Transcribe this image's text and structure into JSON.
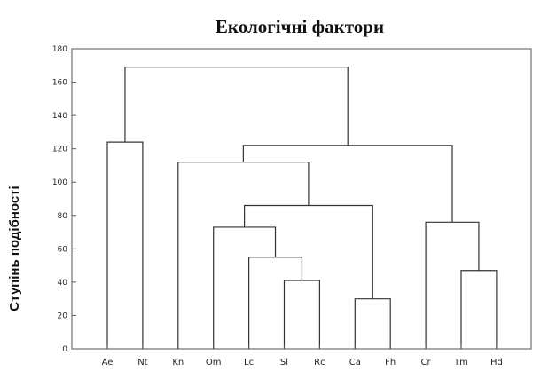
{
  "chart_data": {
    "type": "dendrogram",
    "title": "Екологічні фактори",
    "ylabel": "Ступінь подібності",
    "ylim": [
      0,
      180
    ],
    "yticks": [
      0,
      20,
      40,
      60,
      80,
      100,
      120,
      140,
      160,
      180
    ],
    "leaves": [
      "Ae",
      "Nt",
      "Kn",
      "Om",
      "Lc",
      "Sl",
      "Rc",
      "Ca",
      "Fh",
      "Cr",
      "Tm",
      "Hd"
    ],
    "merges": [
      {
        "left": "Sl",
        "right": "Rc",
        "height": 41
      },
      {
        "left": "Ca",
        "right": "Fh",
        "height": 30
      },
      {
        "left": "Tm",
        "right": "Hd",
        "height": 47
      },
      {
        "left": "Lc",
        "right": "Sl+Rc",
        "height": 55
      },
      {
        "left": "Om",
        "right": "Lc+Sl+Rc",
        "height": 73
      },
      {
        "left": "Cr",
        "right": "Tm+Hd",
        "height": 76
      },
      {
        "left": "Om+Lc+Sl+Rc",
        "right": "Ca+Fh",
        "height": 86
      },
      {
        "left": "Kn",
        "right": "Om+Lc+Sl+Rc+Ca+Fh",
        "height": 112
      },
      {
        "left": "Ae",
        "right": "Nt",
        "height": 124
      },
      {
        "left": "Kn+Om+Lc+Sl+Rc+Ca+Fh",
        "right": "Cr+Tm+Hd",
        "height": 122
      },
      {
        "left": "Ae+Nt",
        "right": "Kn+Om+Lc+Sl+Rc+Ca+Fh+Cr+Tm+Hd",
        "height": 169
      }
    ]
  }
}
